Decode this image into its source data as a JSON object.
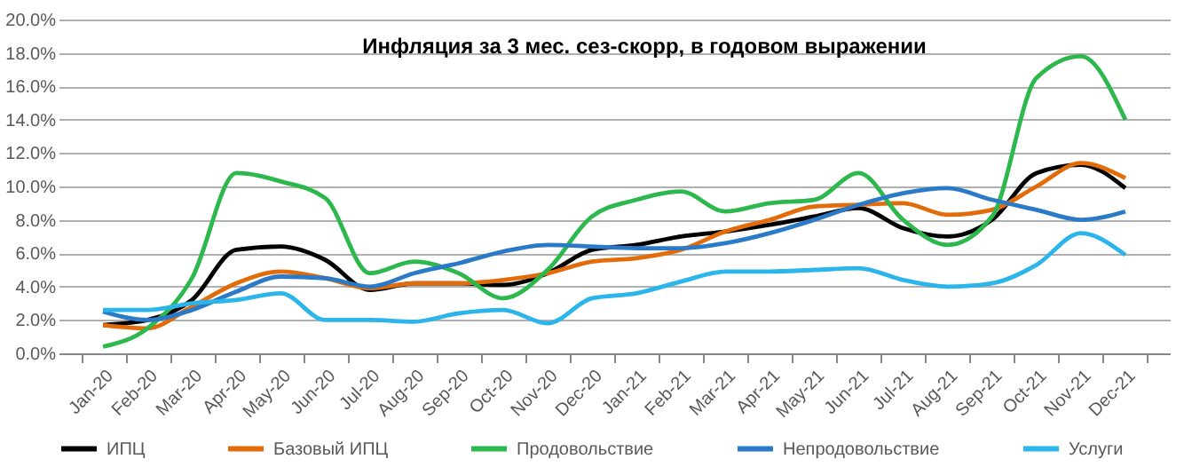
{
  "chart_data": {
    "type": "line",
    "title": "Инфляция за 3 мес. сез-скорр,  в годовом выражении",
    "categories": [
      "Jan-20",
      "Feb-20",
      "Mar-20",
      "Apr-20",
      "May-20",
      "Jun-20",
      "Jul-20",
      "Aug-20",
      "Sep-20",
      "Oct-20",
      "Nov-20",
      "Dec-20",
      "Jan-21",
      "Feb-21",
      "Mar-21",
      "Apr-21",
      "May-21",
      "Jun-21",
      "Jul-21",
      "Aug-21",
      "Sep-21",
      "Oct-21",
      "Nov-21",
      "Dec-21"
    ],
    "series": [
      {
        "name": "ИПЦ",
        "color": "#000000",
        "values": [
          1.7,
          2.0,
          3.2,
          6.2,
          6.4,
          5.6,
          3.8,
          4.2,
          4.2,
          4.1,
          4.8,
          6.2,
          6.5,
          7.0,
          7.3,
          7.7,
          8.2,
          8.7,
          7.5,
          7.0,
          8.0,
          10.8,
          11.3,
          9.9
        ]
      },
      {
        "name": "Базовый ИПЦ",
        "color": "#e36c0a",
        "values": [
          1.7,
          1.5,
          2.8,
          4.2,
          4.9,
          4.5,
          3.9,
          4.2,
          4.2,
          4.4,
          4.8,
          5.5,
          5.7,
          6.2,
          7.3,
          8.0,
          8.8,
          8.9,
          9.0,
          8.3,
          8.6,
          10.0,
          11.4,
          10.5
        ]
      },
      {
        "name": "Продовольствие",
        "color": "#2db84d",
        "values": [
          0.4,
          1.5,
          4.5,
          10.8,
          10.3,
          9.3,
          4.8,
          5.5,
          4.8,
          3.3,
          5.0,
          8.2,
          9.2,
          9.7,
          8.5,
          9.0,
          9.2,
          10.8,
          8.0,
          6.5,
          8.2,
          16.5,
          17.8,
          14.0
        ]
      },
      {
        "name": "Непродовольствие",
        "color": "#2a7ac8",
        "values": [
          2.5,
          2.0,
          2.6,
          3.7,
          4.6,
          4.5,
          4.0,
          4.8,
          5.4,
          6.1,
          6.5,
          6.4,
          6.3,
          6.3,
          6.6,
          7.2,
          8.0,
          8.9,
          9.6,
          9.9,
          9.2,
          8.6,
          8.0,
          8.5
        ]
      },
      {
        "name": "Услуги",
        "color": "#2cb5ea",
        "values": [
          2.6,
          2.6,
          3.0,
          3.2,
          3.6,
          2.0,
          2.0,
          1.9,
          2.4,
          2.6,
          1.8,
          3.3,
          3.6,
          4.3,
          4.9,
          4.9,
          5.0,
          5.1,
          4.4,
          4.0,
          4.2,
          5.3,
          7.2,
          5.9
        ]
      }
    ],
    "ylim": [
      0,
      20
    ],
    "yticks": [
      {
        "value": 0,
        "label": "0.0%"
      },
      {
        "value": 2,
        "label": "2.0%"
      },
      {
        "value": 4,
        "label": "4.0%"
      },
      {
        "value": 6,
        "label": "6.0%"
      },
      {
        "value": 8,
        "label": "8.0%"
      },
      {
        "value": 10,
        "label": "10.0%"
      },
      {
        "value": 12,
        "label": "12.0%"
      },
      {
        "value": 14,
        "label": "14.0%"
      },
      {
        "value": 16,
        "label": "16.0%"
      },
      {
        "value": 18,
        "label": "18.0%"
      },
      {
        "value": 20,
        "label": "20.0%"
      }
    ],
    "grid": "y",
    "legend": "bottom",
    "marker": "none",
    "line_style": "solid"
  }
}
